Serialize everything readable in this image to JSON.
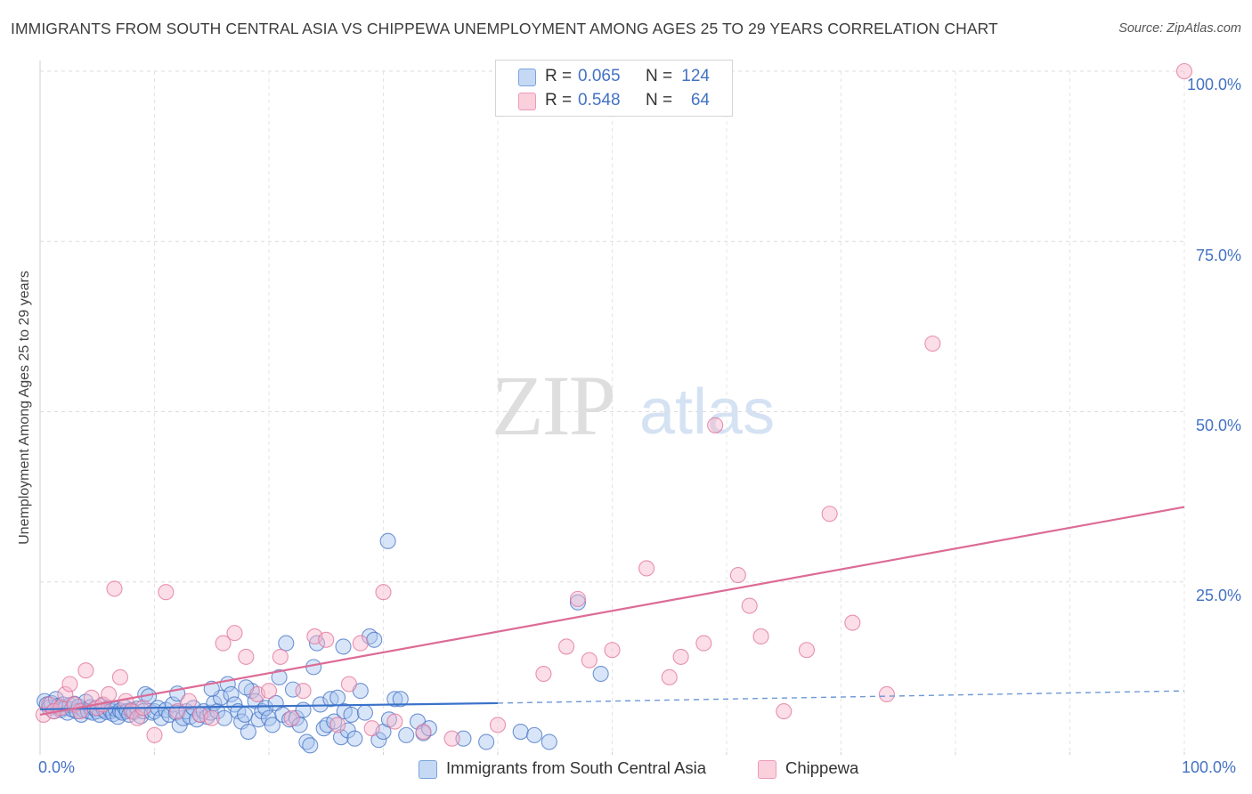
{
  "title": "IMMIGRANTS FROM SOUTH CENTRAL ASIA VS CHIPPEWA UNEMPLOYMENT AMONG AGES 25 TO 29 YEARS CORRELATION CHART",
  "source": "Source: ZipAtlas.com",
  "watermark": {
    "zip": "ZIP",
    "atlas": "atlas"
  },
  "legend": {
    "rows": [
      {
        "r_label": "R =",
        "r_value": "0.065",
        "n_label": "N =",
        "n_value": "124",
        "color": "#a9c6ef"
      },
      {
        "r_label": "R =",
        "r_value": "0.548",
        "n_label": "N =",
        "n_value": "64",
        "color": "#f6b6cb"
      }
    ]
  },
  "chart_data": {
    "type": "scatter",
    "title": "IMMIGRANTS FROM SOUTH CENTRAL ASIA VS CHIPPEWA UNEMPLOYMENT AMONG AGES 25 TO 29 YEARS CORRELATION CHART",
    "xlabel": "",
    "ylabel": "Unemployment Among Ages 25 to 29 years",
    "xlim": [
      0,
      100
    ],
    "ylim": [
      0,
      100
    ],
    "x_tick_labels": [
      "0.0%",
      "100.0%"
    ],
    "y_tick_labels": [
      "100.0%",
      "75.0%",
      "50.0%",
      "25.0%"
    ],
    "y_tick_values": [
      100,
      75,
      50,
      25
    ],
    "series": [
      {
        "name": "Immigrants from South Central Asia",
        "color": "#4472c4",
        "fill": "#a9c6ef",
        "r": 0.065,
        "n": 124,
        "trend": {
          "x0": 0,
          "y0": 6.3,
          "x1": 40,
          "y1": 7.2,
          "dash_to_x": 100,
          "dash_to_y": 9.0
        },
        "points": [
          [
            0.4,
            7.5
          ],
          [
            0.6,
            7.0
          ],
          [
            0.8,
            6.5
          ],
          [
            1.0,
            7.2
          ],
          [
            1.2,
            6.0
          ],
          [
            1.4,
            7.8
          ],
          [
            1.6,
            6.8
          ],
          [
            1.8,
            6.2
          ],
          [
            2.0,
            7.0
          ],
          [
            2.2,
            6.5
          ],
          [
            2.4,
            5.8
          ],
          [
            2.6,
            6.9
          ],
          [
            2.8,
            6.3
          ],
          [
            3.0,
            7.1
          ],
          [
            3.2,
            6.0
          ],
          [
            3.4,
            6.7
          ],
          [
            3.6,
            5.5
          ],
          [
            3.8,
            6.2
          ],
          [
            4.0,
            7.4
          ],
          [
            4.2,
            6.0
          ],
          [
            4.4,
            6.6
          ],
          [
            4.6,
            5.8
          ],
          [
            4.8,
            6.4
          ],
          [
            5.0,
            6.0
          ],
          [
            5.2,
            5.5
          ],
          [
            5.4,
            6.8
          ],
          [
            5.6,
            6.2
          ],
          [
            5.8,
            5.9
          ],
          [
            6.0,
            6.5
          ],
          [
            6.2,
            6.0
          ],
          [
            6.4,
            5.6
          ],
          [
            6.6,
            6.3
          ],
          [
            6.8,
            5.2
          ],
          [
            7.0,
            6.1
          ],
          [
            7.2,
            5.8
          ],
          [
            7.4,
            6.6
          ],
          [
            7.6,
            6.0
          ],
          [
            7.8,
            5.5
          ],
          [
            8.0,
            6.2
          ],
          [
            8.2,
            5.9
          ],
          [
            8.5,
            6.4
          ],
          [
            8.8,
            5.3
          ],
          [
            9.0,
            6.0
          ],
          [
            9.2,
            8.5
          ],
          [
            9.5,
            8.2
          ],
          [
            9.8,
            5.8
          ],
          [
            10.0,
            6.0
          ],
          [
            10.3,
            6.5
          ],
          [
            10.6,
            5.0
          ],
          [
            11.0,
            6.2
          ],
          [
            11.3,
            5.5
          ],
          [
            11.6,
            7.0
          ],
          [
            11.9,
            5.8
          ],
          [
            12.2,
            4.0
          ],
          [
            12.5,
            5.0
          ],
          [
            12.8,
            6.0
          ],
          [
            13.1,
            5.2
          ],
          [
            13.4,
            6.5
          ],
          [
            13.7,
            4.8
          ],
          [
            14.0,
            5.5
          ],
          [
            14.3,
            6.0
          ],
          [
            14.6,
            5.2
          ],
          [
            14.9,
            5.8
          ],
          [
            15.2,
            7.2
          ],
          [
            15.5,
            6.0
          ],
          [
            15.8,
            8.0
          ],
          [
            16.1,
            5.0
          ],
          [
            16.4,
            10.0
          ],
          [
            16.7,
            8.5
          ],
          [
            17.0,
            7.0
          ],
          [
            17.3,
            6.0
          ],
          [
            17.6,
            4.5
          ],
          [
            17.9,
            5.5
          ],
          [
            18.2,
            3.0
          ],
          [
            18.5,
            9.0
          ],
          [
            18.8,
            7.5
          ],
          [
            19.1,
            4.8
          ],
          [
            19.4,
            6.0
          ],
          [
            19.7,
            6.5
          ],
          [
            20.0,
            5.0
          ],
          [
            20.3,
            4.0
          ],
          [
            20.6,
            7.2
          ],
          [
            20.9,
            11.0
          ],
          [
            21.2,
            5.5
          ],
          [
            21.5,
            16.0
          ],
          [
            21.8,
            4.8
          ],
          [
            22.1,
            9.2
          ],
          [
            22.4,
            5.0
          ],
          [
            22.7,
            4.0
          ],
          [
            23.0,
            6.2
          ],
          [
            23.3,
            1.5
          ],
          [
            23.6,
            1.0
          ],
          [
            23.9,
            12.5
          ],
          [
            24.2,
            16.0
          ],
          [
            24.5,
            7.0
          ],
          [
            24.8,
            3.5
          ],
          [
            25.1,
            4.0
          ],
          [
            25.4,
            7.8
          ],
          [
            25.7,
            4.5
          ],
          [
            26.0,
            8.0
          ],
          [
            26.3,
            2.2
          ],
          [
            26.6,
            6.0
          ],
          [
            26.9,
            3.2
          ],
          [
            27.2,
            5.5
          ],
          [
            27.5,
            2.0
          ],
          [
            28.0,
            9.0
          ],
          [
            28.4,
            5.8
          ],
          [
            28.8,
            17.0
          ],
          [
            29.2,
            16.5
          ],
          [
            29.6,
            1.8
          ],
          [
            30.0,
            3.0
          ],
          [
            30.5,
            4.8
          ],
          [
            31.0,
            7.8
          ],
          [
            31.5,
            7.8
          ],
          [
            32.0,
            2.5
          ],
          [
            33.0,
            4.5
          ],
          [
            33.5,
            2.8
          ],
          [
            34.0,
            3.5
          ],
          [
            37.0,
            2.0
          ],
          [
            39.0,
            1.5
          ],
          [
            42.0,
            3.0
          ],
          [
            43.2,
            2.5
          ],
          [
            44.5,
            1.5
          ],
          [
            47.0,
            22.0
          ],
          [
            49.0,
            11.5
          ],
          [
            30.4,
            31.0
          ],
          [
            15.0,
            9.3
          ],
          [
            12.0,
            8.6
          ],
          [
            26.5,
            15.5
          ],
          [
            18.0,
            9.5
          ]
        ]
      },
      {
        "name": "Chippewa",
        "color": "#e0709a",
        "fill": "#f6b6cb",
        "r": 0.548,
        "n": 64,
        "trend": {
          "x0": 0,
          "y0": 5.5,
          "x1": 100,
          "y1": 36.0
        },
        "points": [
          [
            0.3,
            5.5
          ],
          [
            0.8,
            7.0
          ],
          [
            1.2,
            6.0
          ],
          [
            1.8,
            6.5
          ],
          [
            2.2,
            8.5
          ],
          [
            2.6,
            10.0
          ],
          [
            3.0,
            7.0
          ],
          [
            3.5,
            6.0
          ],
          [
            4.0,
            12.0
          ],
          [
            4.5,
            8.0
          ],
          [
            5.0,
            6.5
          ],
          [
            5.5,
            7.0
          ],
          [
            6.0,
            8.5
          ],
          [
            6.5,
            24.0
          ],
          [
            7.0,
            11.0
          ],
          [
            7.5,
            7.5
          ],
          [
            8.0,
            6.0
          ],
          [
            8.5,
            5.0
          ],
          [
            9.0,
            6.5
          ],
          [
            10.0,
            2.5
          ],
          [
            11.0,
            23.5
          ],
          [
            12.0,
            6.0
          ],
          [
            13.0,
            7.5
          ],
          [
            14.0,
            5.5
          ],
          [
            15.0,
            5.0
          ],
          [
            16.0,
            16.0
          ],
          [
            17.0,
            17.5
          ],
          [
            18.0,
            14.0
          ],
          [
            19.0,
            8.5
          ],
          [
            20.0,
            9.0
          ],
          [
            21.0,
            14.0
          ],
          [
            22.0,
            5.0
          ],
          [
            23.0,
            9.0
          ],
          [
            24.0,
            17.0
          ],
          [
            25.0,
            16.5
          ],
          [
            26.0,
            4.0
          ],
          [
            27.0,
            10.0
          ],
          [
            28.0,
            16.0
          ],
          [
            29.0,
            3.5
          ],
          [
            30.0,
            23.5
          ],
          [
            31.0,
            4.5
          ],
          [
            33.5,
            3.0
          ],
          [
            36.0,
            2.0
          ],
          [
            40.0,
            4.0
          ],
          [
            44.0,
            11.5
          ],
          [
            46.0,
            15.5
          ],
          [
            47.0,
            22.5
          ],
          [
            48.0,
            13.5
          ],
          [
            50.0,
            15.0
          ],
          [
            53.0,
            27.0
          ],
          [
            55.0,
            11.0
          ],
          [
            56.0,
            14.0
          ],
          [
            58.0,
            16.0
          ],
          [
            59.0,
            48.0
          ],
          [
            61.0,
            26.0
          ],
          [
            62.0,
            21.5
          ],
          [
            63.0,
            17.0
          ],
          [
            65.0,
            6.0
          ],
          [
            67.0,
            15.0
          ],
          [
            69.0,
            35.0
          ],
          [
            71.0,
            19.0
          ],
          [
            74.0,
            8.5
          ],
          [
            78.0,
            60.0
          ],
          [
            100.0,
            100.0
          ]
        ]
      }
    ]
  },
  "bottom_legend": [
    {
      "label": "Immigrants from South Central Asia",
      "color": "#a9c6ef",
      "border": "#4472c4"
    },
    {
      "label": "Chippewa",
      "color": "#f6b6cb",
      "border": "#e0709a"
    }
  ]
}
